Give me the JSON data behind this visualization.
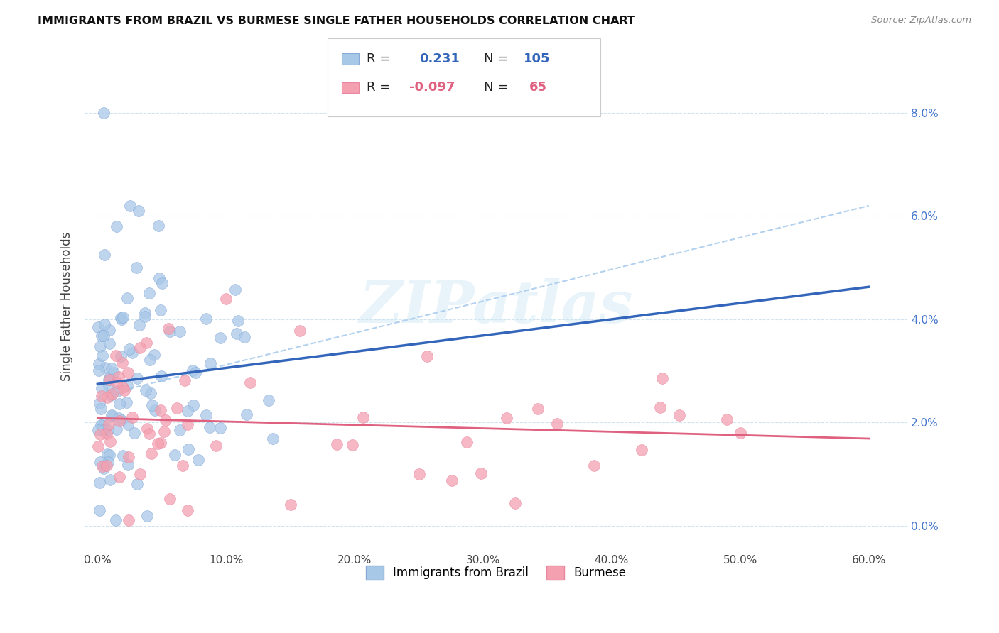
{
  "title": "IMMIGRANTS FROM BRAZIL VS BURMESE SINGLE FATHER HOUSEHOLDS CORRELATION CHART",
  "source": "Source: ZipAtlas.com",
  "ylabel_label": "Single Father Households",
  "legend_labels": [
    "Immigrants from Brazil",
    "Burmese"
  ],
  "r1": 0.231,
  "n1": 105,
  "r2": -0.097,
  "n2": 65,
  "brazil_color": "#a8c8e8",
  "brazil_edge_color": "#88aad8",
  "burmese_color": "#f4a0b0",
  "burmese_edge_color": "#e888a0",
  "brazil_line_color": "#3366bb",
  "burmese_line_color": "#e06080",
  "dashed_line_color": "#aaccee",
  "watermark": "ZIPatlas",
  "x_tick_vals": [
    0,
    10,
    20,
    30,
    40,
    50,
    60
  ],
  "y_tick_vals": [
    0,
    2,
    4,
    6,
    8
  ],
  "xlim": [
    -1,
    63
  ],
  "ylim": [
    -0.5,
    9.0
  ]
}
